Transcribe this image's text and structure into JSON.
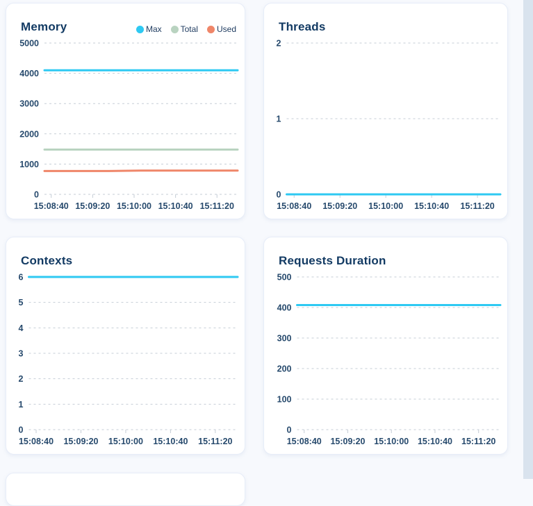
{
  "theme": {
    "background": "#f7f9fd",
    "card_background": "#ffffff",
    "card_border": "#e7edf8",
    "title_color": "#123a63",
    "axis_label_color": "#274a6d",
    "gridline_color": "#c5cdd6",
    "scrollbar_color": "#d9e3ee",
    "series_cyan": "#2ec9f2",
    "series_green": "#b9d3c0",
    "series_salmon": "#ef8669"
  },
  "chart_data": [
    {
      "type": "line",
      "title": "Memory",
      "x_ticks": [
        "15:08:40",
        "15:09:20",
        "15:10:00",
        "15:10:40",
        "15:11:20"
      ],
      "y_ticks": [
        0,
        1000,
        2000,
        3000,
        4000,
        5000
      ],
      "y_max": 5000,
      "ylim": [
        0,
        5000
      ],
      "grid": "horizontal-dashed",
      "legend": true,
      "legend_position": "top-right",
      "series": [
        {
          "name": "Max",
          "color": "#2ec9f2",
          "values": [
            4100,
            4100,
            4100,
            4100,
            4100,
            4100,
            4100
          ]
        },
        {
          "name": "Total",
          "color": "#b9d3c0",
          "values": [
            1480,
            1480,
            1480,
            1480,
            1480,
            1480,
            1480
          ]
        },
        {
          "name": "Used",
          "color": "#ef8669",
          "values": [
            770,
            770,
            770,
            785,
            785,
            785,
            785
          ]
        }
      ]
    },
    {
      "type": "line",
      "title": "Threads",
      "x_ticks": [
        "15:08:40",
        "15:09:20",
        "15:10:00",
        "15:10:40",
        "15:11:20"
      ],
      "y_ticks": [
        0,
        1,
        2
      ],
      "y_max": 2,
      "ylim": [
        0,
        2
      ],
      "grid": "horizontal-dashed",
      "legend": false,
      "series": [
        {
          "name": "Threads",
          "color": "#2ec9f2",
          "values": [
            0,
            0,
            0,
            0,
            0,
            0,
            0
          ]
        }
      ]
    },
    {
      "type": "line",
      "title": "Contexts",
      "x_ticks": [
        "15:08:40",
        "15:09:20",
        "15:10:00",
        "15:10:40",
        "15:11:20"
      ],
      "y_ticks": [
        0,
        1,
        2,
        3,
        4,
        5,
        6
      ],
      "y_max": 6,
      "ylim": [
        0,
        6
      ],
      "grid": "horizontal-dashed",
      "legend": false,
      "series": [
        {
          "name": "Contexts",
          "color": "#2ec9f2",
          "values": [
            6,
            6,
            6,
            6,
            6,
            6,
            6
          ]
        }
      ]
    },
    {
      "type": "line",
      "title": "Requests Duration",
      "x_ticks": [
        "15:08:40",
        "15:09:20",
        "15:10:00",
        "15:10:40",
        "15:11:20"
      ],
      "y_ticks": [
        0,
        100,
        200,
        300,
        400,
        500
      ],
      "y_max": 500,
      "ylim": [
        0,
        500
      ],
      "grid": "horizontal-dashed",
      "legend": false,
      "series": [
        {
          "name": "Requests Duration",
          "color": "#2ec9f2",
          "values": [
            408,
            408,
            408,
            408,
            408,
            408,
            408
          ]
        }
      ]
    }
  ]
}
